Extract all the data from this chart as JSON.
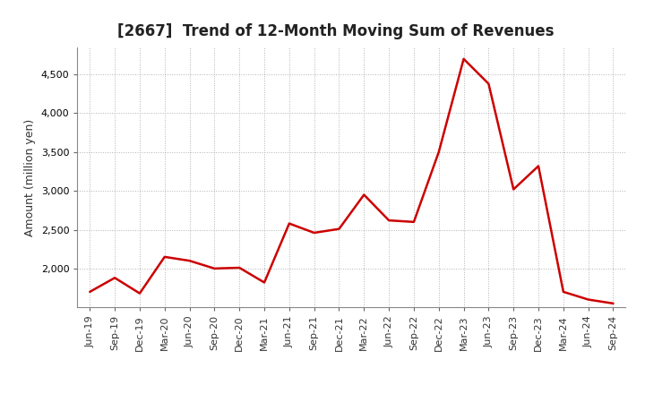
{
  "title": "[2667]  Trend of 12-Month Moving Sum of Revenues",
  "ylabel": "Amount (million yen)",
  "line_color": "#cc0000",
  "background_color": "#ffffff",
  "plot_bg_color": "#ffffff",
  "grid_color": "#aaaaaa",
  "title_fontsize": 12,
  "label_fontsize": 9,
  "tick_fontsize": 8,
  "ylim": [
    1500,
    4850
  ],
  "yticks": [
    2000,
    2500,
    3000,
    3500,
    4000,
    4500
  ],
  "x_labels": [
    "Jun-19",
    "Sep-19",
    "Dec-19",
    "Mar-20",
    "Jun-20",
    "Sep-20",
    "Dec-20",
    "Mar-21",
    "Jun-21",
    "Sep-21",
    "Dec-21",
    "Mar-22",
    "Jun-22",
    "Sep-22",
    "Dec-22",
    "Mar-23",
    "Jun-23",
    "Sep-23",
    "Dec-23",
    "Mar-24",
    "Jun-24",
    "Sep-24"
  ],
  "values": [
    1700,
    1880,
    1680,
    2150,
    2100,
    2000,
    2010,
    1820,
    2580,
    2460,
    2510,
    2950,
    2620,
    2600,
    3500,
    4700,
    4380,
    3020,
    3320,
    1700,
    1600,
    1550
  ]
}
